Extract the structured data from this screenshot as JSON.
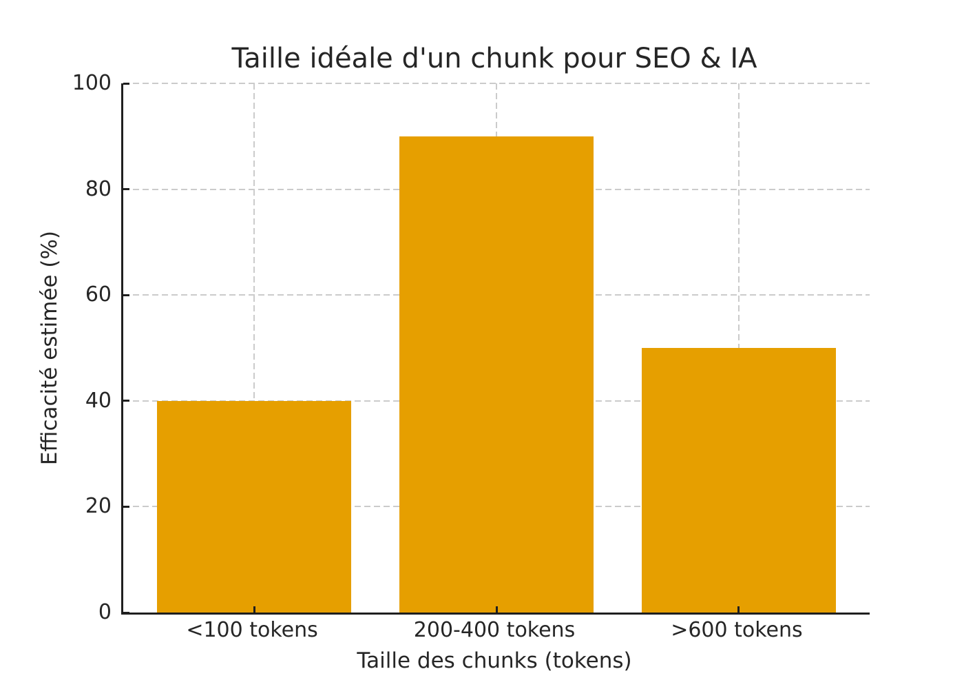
{
  "chart_data": {
    "type": "bar",
    "title": "Taille idéale d'un chunk pour SEO & IA",
    "xlabel": "Taille des chunks (tokens)",
    "ylabel": "Efficacité estimée (%)",
    "categories": [
      "<100 tokens",
      "200-400 tokens",
      ">600 tokens"
    ],
    "values": [
      40,
      90,
      50
    ],
    "ylim": [
      0,
      100
    ],
    "y_ticks": [
      0,
      20,
      40,
      60,
      80,
      100
    ],
    "bar_color": "#E69F00",
    "grid": "on",
    "grid_style": "dashed",
    "grid_color": "#cbcbcb",
    "axis_color": "#1f1f1f",
    "text_color": "#262626",
    "background_color": "#ffffff",
    "legend": "none"
  }
}
